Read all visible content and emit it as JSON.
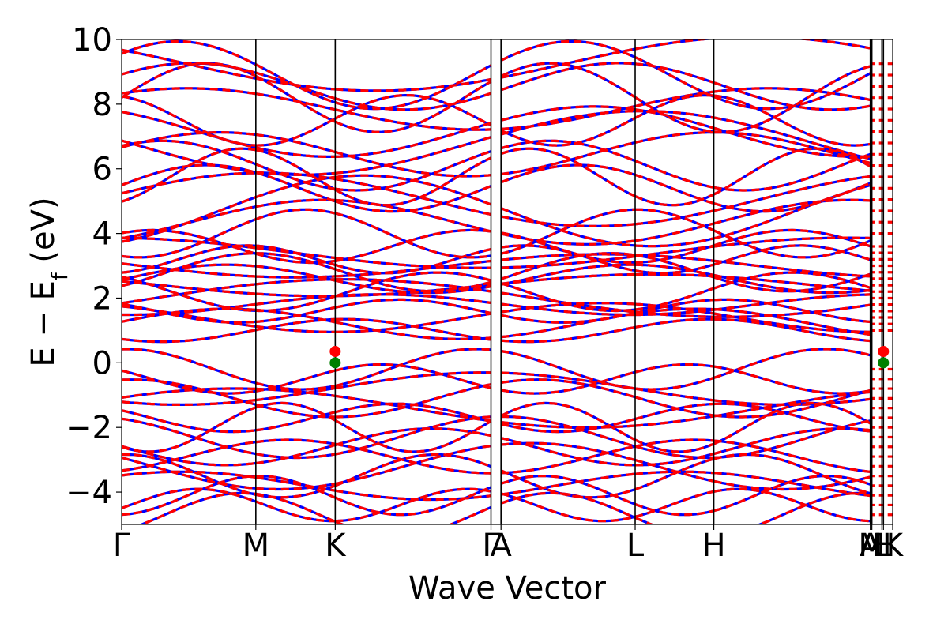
{
  "chart_data": {
    "type": "line",
    "xlabel": "Wave Vector",
    "ylabel_main": "E − E",
    "ylabel_sub": "f",
    "ylabel_unit": " (eV)",
    "ylim": [
      -5,
      10
    ],
    "yticks": [
      -4,
      -2,
      0,
      2,
      4,
      6,
      8,
      10
    ],
    "ytick_labels": [
      "−4",
      "−2",
      "0",
      "2",
      "4",
      "6",
      "8",
      "10"
    ],
    "kpath": [
      {
        "label": "Γ",
        "x": 0.0
      },
      {
        "label": "M",
        "x": 0.174
      },
      {
        "label": "K",
        "x": 0.277
      },
      {
        "label": "Γ",
        "x": 0.479
      },
      {
        "label": "A",
        "x": 0.492
      },
      {
        "label": "L",
        "x": 0.666
      },
      {
        "label": "H",
        "x": 0.768
      },
      {
        "label": "A",
        "x": 0.971
      },
      {
        "label": "M",
        "x": 0.973
      },
      {
        "label": "L",
        "x": 0.986
      },
      {
        "label": "H",
        "x": 0.988
      },
      {
        "label": "K",
        "x": 1.0
      }
    ],
    "grid": false,
    "series": [
      {
        "style": "solid",
        "color": "#0000ff"
      },
      {
        "style": "dashed",
        "color": "#ff0000"
      }
    ],
    "markers": [
      {
        "kind": "cbm",
        "color": "#ff0000",
        "points": [
          [
            0.277,
            0.35
          ],
          [
            0.988,
            0.35
          ]
        ]
      },
      {
        "kind": "vbm",
        "color": "#008000",
        "points": [
          [
            0.277,
            0.0
          ],
          [
            0.988,
            0.0
          ]
        ]
      }
    ]
  }
}
